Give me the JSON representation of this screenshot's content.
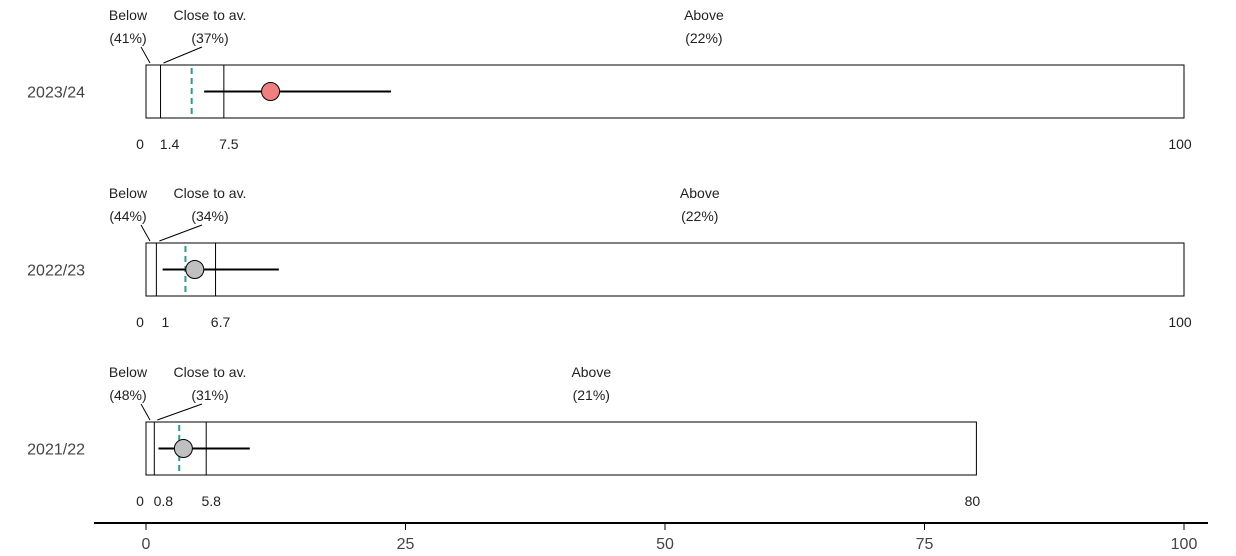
{
  "chart_data": {
    "type": "range_dot_plot",
    "x_axis": {
      "min": 0,
      "max": 100,
      "ticks": [
        0,
        25,
        50,
        75,
        100
      ]
    },
    "band_labels": {
      "below": "Below",
      "close": "Close to av.",
      "above": "Above"
    },
    "rows": [
      {
        "label": "2023/24",
        "lower": 1.4,
        "upper": 7.5,
        "max": 100,
        "lower_label": "1.4",
        "upper_label": "7.5",
        "max_label": "100",
        "zero_label": "0",
        "average": 4.4,
        "value": 12,
        "ci_low": 5.6,
        "ci_high": 23.6,
        "dot_color": "#f08080",
        "pct_below": "(41%)",
        "pct_close": "(37%)",
        "pct_above": "(22%)"
      },
      {
        "label": "2022/23",
        "lower": 1,
        "upper": 6.7,
        "max": 100,
        "lower_label": "1",
        "upper_label": "6.7",
        "max_label": "100",
        "zero_label": "0",
        "average": 3.8,
        "value": 4.7,
        "ci_low": 1.6,
        "ci_high": 12.8,
        "dot_color": "#c0c0c0",
        "pct_below": "(44%)",
        "pct_close": "(34%)",
        "pct_above": "(22%)"
      },
      {
        "label": "2021/22",
        "lower": 0.8,
        "upper": 5.8,
        "max": 80,
        "lower_label": "0.8",
        "upper_label": "5.8",
        "max_label": "80",
        "zero_label": "0",
        "average": 3.2,
        "value": 3.6,
        "ci_low": 1.2,
        "ci_high": 10.0,
        "dot_color": "#c0c0c0",
        "pct_below": "(48%)",
        "pct_close": "(31%)",
        "pct_above": "(21%)"
      }
    ],
    "colors": {
      "average_line": "#2a9d8f",
      "frame": "#000000",
      "text": "#222222"
    }
  }
}
